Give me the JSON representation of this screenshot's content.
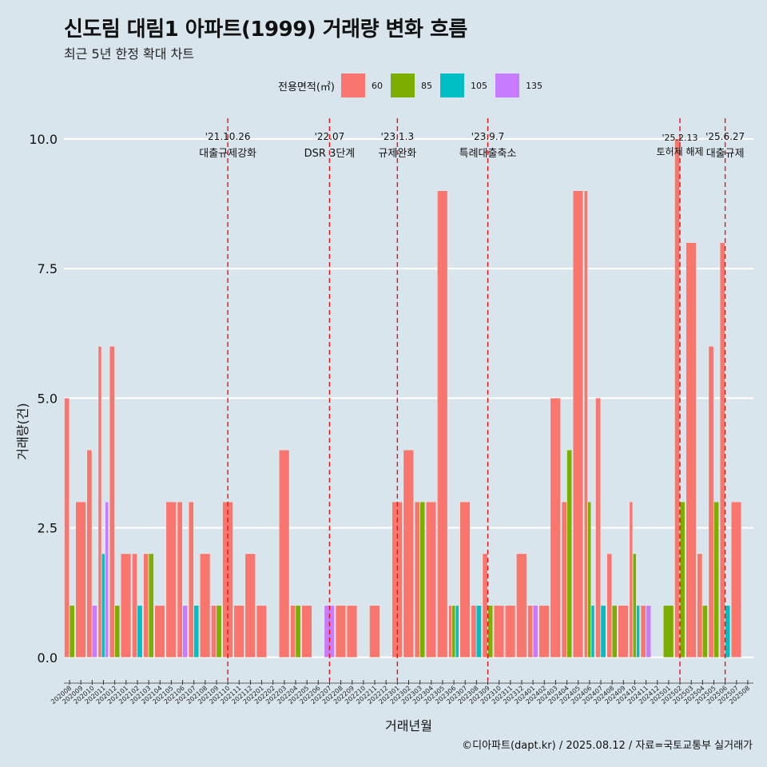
{
  "chart_data": {
    "type": "bar",
    "title": "신도림 대림1 아파트(1999) 거래량 변화 흐름",
    "subtitle": "최근 5년 한정 확대 차트",
    "xlabel": "거래년월",
    "ylabel": "거래량(건)",
    "caption": "©디아파트(dapt.kr) / 2025.08.12 / 자료=국토교통부 실거래가",
    "legend_title": "전용면적(㎡)",
    "legend_position": "top",
    "ylim": [
      -0.45,
      10.4
    ],
    "y_ticks": [
      0.0,
      2.5,
      5.0,
      7.5,
      10.0
    ],
    "y_tick_labels": [
      "0.0",
      "2.5",
      "5.0",
      "7.5",
      "10.0"
    ],
    "grid": "horizontal major only",
    "categories": [
      "202008",
      "202009",
      "202010",
      "202011",
      "202012",
      "202101",
      "202102",
      "202103",
      "202104",
      "202105",
      "202106",
      "202107",
      "202108",
      "202109",
      "202110",
      "202111",
      "202112",
      "202201",
      "202202",
      "202203",
      "202204",
      "202205",
      "202206",
      "202207",
      "202208",
      "202209",
      "202210",
      "202211",
      "202212",
      "202301",
      "202302",
      "202303",
      "202304",
      "202305",
      "202306",
      "202307",
      "202308",
      "202309",
      "202310",
      "202311",
      "202312",
      "202401",
      "202402",
      "202403",
      "202404",
      "202405",
      "202406",
      "202407",
      "202408",
      "202409",
      "202410",
      "202411",
      "202412",
      "202501",
      "202502",
      "202503",
      "202504",
      "202505",
      "202506",
      "202507",
      "202508"
    ],
    "series": [
      {
        "name": "60",
        "color": "#f8766d",
        "values": [
          5,
          3,
          4,
          6,
          6,
          2,
          2,
          2,
          1,
          3,
          3,
          3,
          2,
          1,
          3,
          1,
          2,
          1,
          0,
          4,
          1,
          1,
          0,
          0,
          1,
          1,
          0,
          1,
          0,
          3,
          4,
          3,
          3,
          9,
          1,
          3,
          1,
          2,
          1,
          1,
          2,
          1,
          1,
          5,
          3,
          9,
          9,
          5,
          2,
          1,
          3,
          1,
          0,
          0,
          10,
          8,
          2,
          6,
          8,
          3,
          0
        ]
      },
      {
        "name": "85",
        "color": "#7cae00",
        "values": [
          1,
          0,
          0,
          0,
          1,
          0,
          0,
          2,
          0,
          0,
          0,
          0,
          0,
          1,
          0,
          0,
          0,
          0,
          0,
          0,
          1,
          0,
          0,
          0,
          0,
          0,
          0,
          0,
          0,
          0,
          0,
          3,
          0,
          0,
          1,
          0,
          0,
          1,
          0,
          0,
          0,
          0,
          0,
          0,
          4,
          0,
          3,
          0,
          1,
          0,
          2,
          0,
          0,
          1,
          3,
          0,
          1,
          3,
          0,
          0,
          0
        ]
      },
      {
        "name": "105",
        "color": "#00bfc4",
        "values": [
          0,
          0,
          0,
          2,
          0,
          0,
          1,
          0,
          0,
          0,
          0,
          1,
          0,
          0,
          0,
          0,
          0,
          0,
          0,
          0,
          0,
          0,
          0,
          0,
          0,
          0,
          0,
          0,
          0,
          0,
          0,
          0,
          0,
          0,
          1,
          0,
          1,
          0,
          0,
          0,
          0,
          0,
          0,
          0,
          0,
          0,
          1,
          1,
          0,
          0,
          1,
          0,
          0,
          0,
          0,
          0,
          0,
          0,
          1,
          0,
          0
        ]
      },
      {
        "name": "135",
        "color": "#c77cff",
        "values": [
          0,
          0,
          1,
          3,
          0,
          0,
          0,
          0,
          0,
          0,
          1,
          0,
          0,
          0,
          0,
          0,
          0,
          0,
          0,
          0,
          0,
          0,
          0,
          1,
          0,
          0,
          0,
          0,
          0,
          0,
          0,
          0,
          0,
          0,
          0,
          0,
          0,
          0,
          0,
          0,
          0,
          1,
          0,
          0,
          0,
          0,
          0,
          0,
          0,
          0,
          0,
          1,
          0,
          0,
          0,
          0,
          0,
          0,
          0,
          0,
          0
        ]
      }
    ],
    "annotations": [
      {
        "at": "202110",
        "date": "'21.10.26",
        "label": "대출규제강화"
      },
      {
        "at": "202207",
        "date": "'22.07",
        "label": "DSR 3단계"
      },
      {
        "at": "202301",
        "date": "'23.1.3",
        "label": "규제완화"
      },
      {
        "at": "202309",
        "date": "'23.9.7",
        "label": "특례대출축소"
      },
      {
        "at": "202502",
        "date": "'25.2.13",
        "label": "토허제 해제"
      },
      {
        "at": "202506",
        "date": "'25.6.27",
        "label": "대출규제"
      }
    ]
  }
}
